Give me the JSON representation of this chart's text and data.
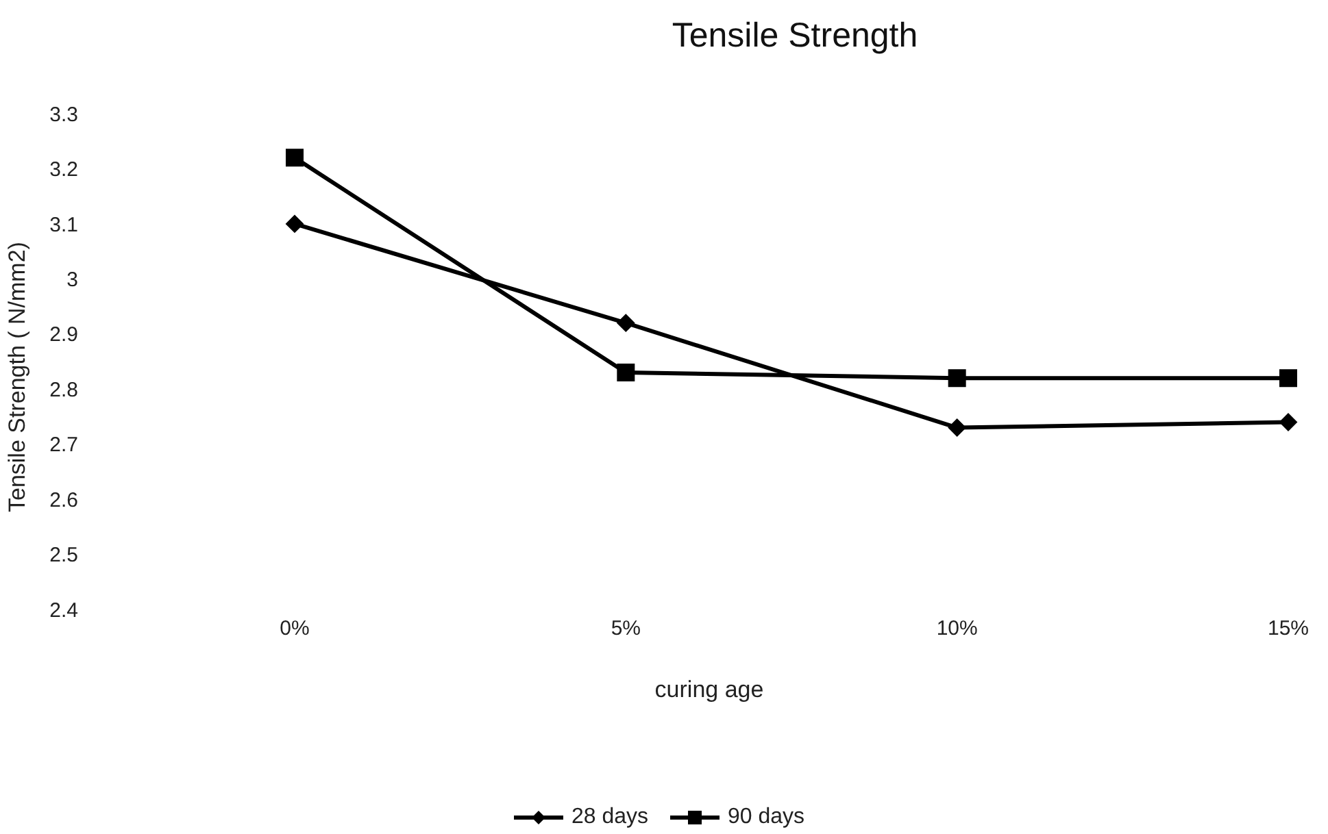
{
  "chart_data": {
    "type": "line",
    "title": "Tensile Strength",
    "xlabel": "curing age",
    "ylabel": "Tensile Strength ( N/mm2)",
    "categories": [
      "0%",
      "5%",
      "10%",
      "15%"
    ],
    "series": [
      {
        "name": "28 days",
        "color": "#000000",
        "marker": "diamond",
        "values": [
          3.1,
          2.92,
          2.73,
          2.74
        ]
      },
      {
        "name": "90 days",
        "color": "#000000",
        "marker": "square",
        "values": [
          3.22,
          2.83,
          2.82,
          2.82
        ]
      }
    ],
    "ylim": [
      2.4,
      3.3
    ],
    "yticks": [
      2.4,
      2.5,
      2.6,
      2.7,
      2.8,
      2.9,
      3,
      3.1,
      3.2,
      3.3
    ],
    "grid": false,
    "legend": "bottom"
  }
}
